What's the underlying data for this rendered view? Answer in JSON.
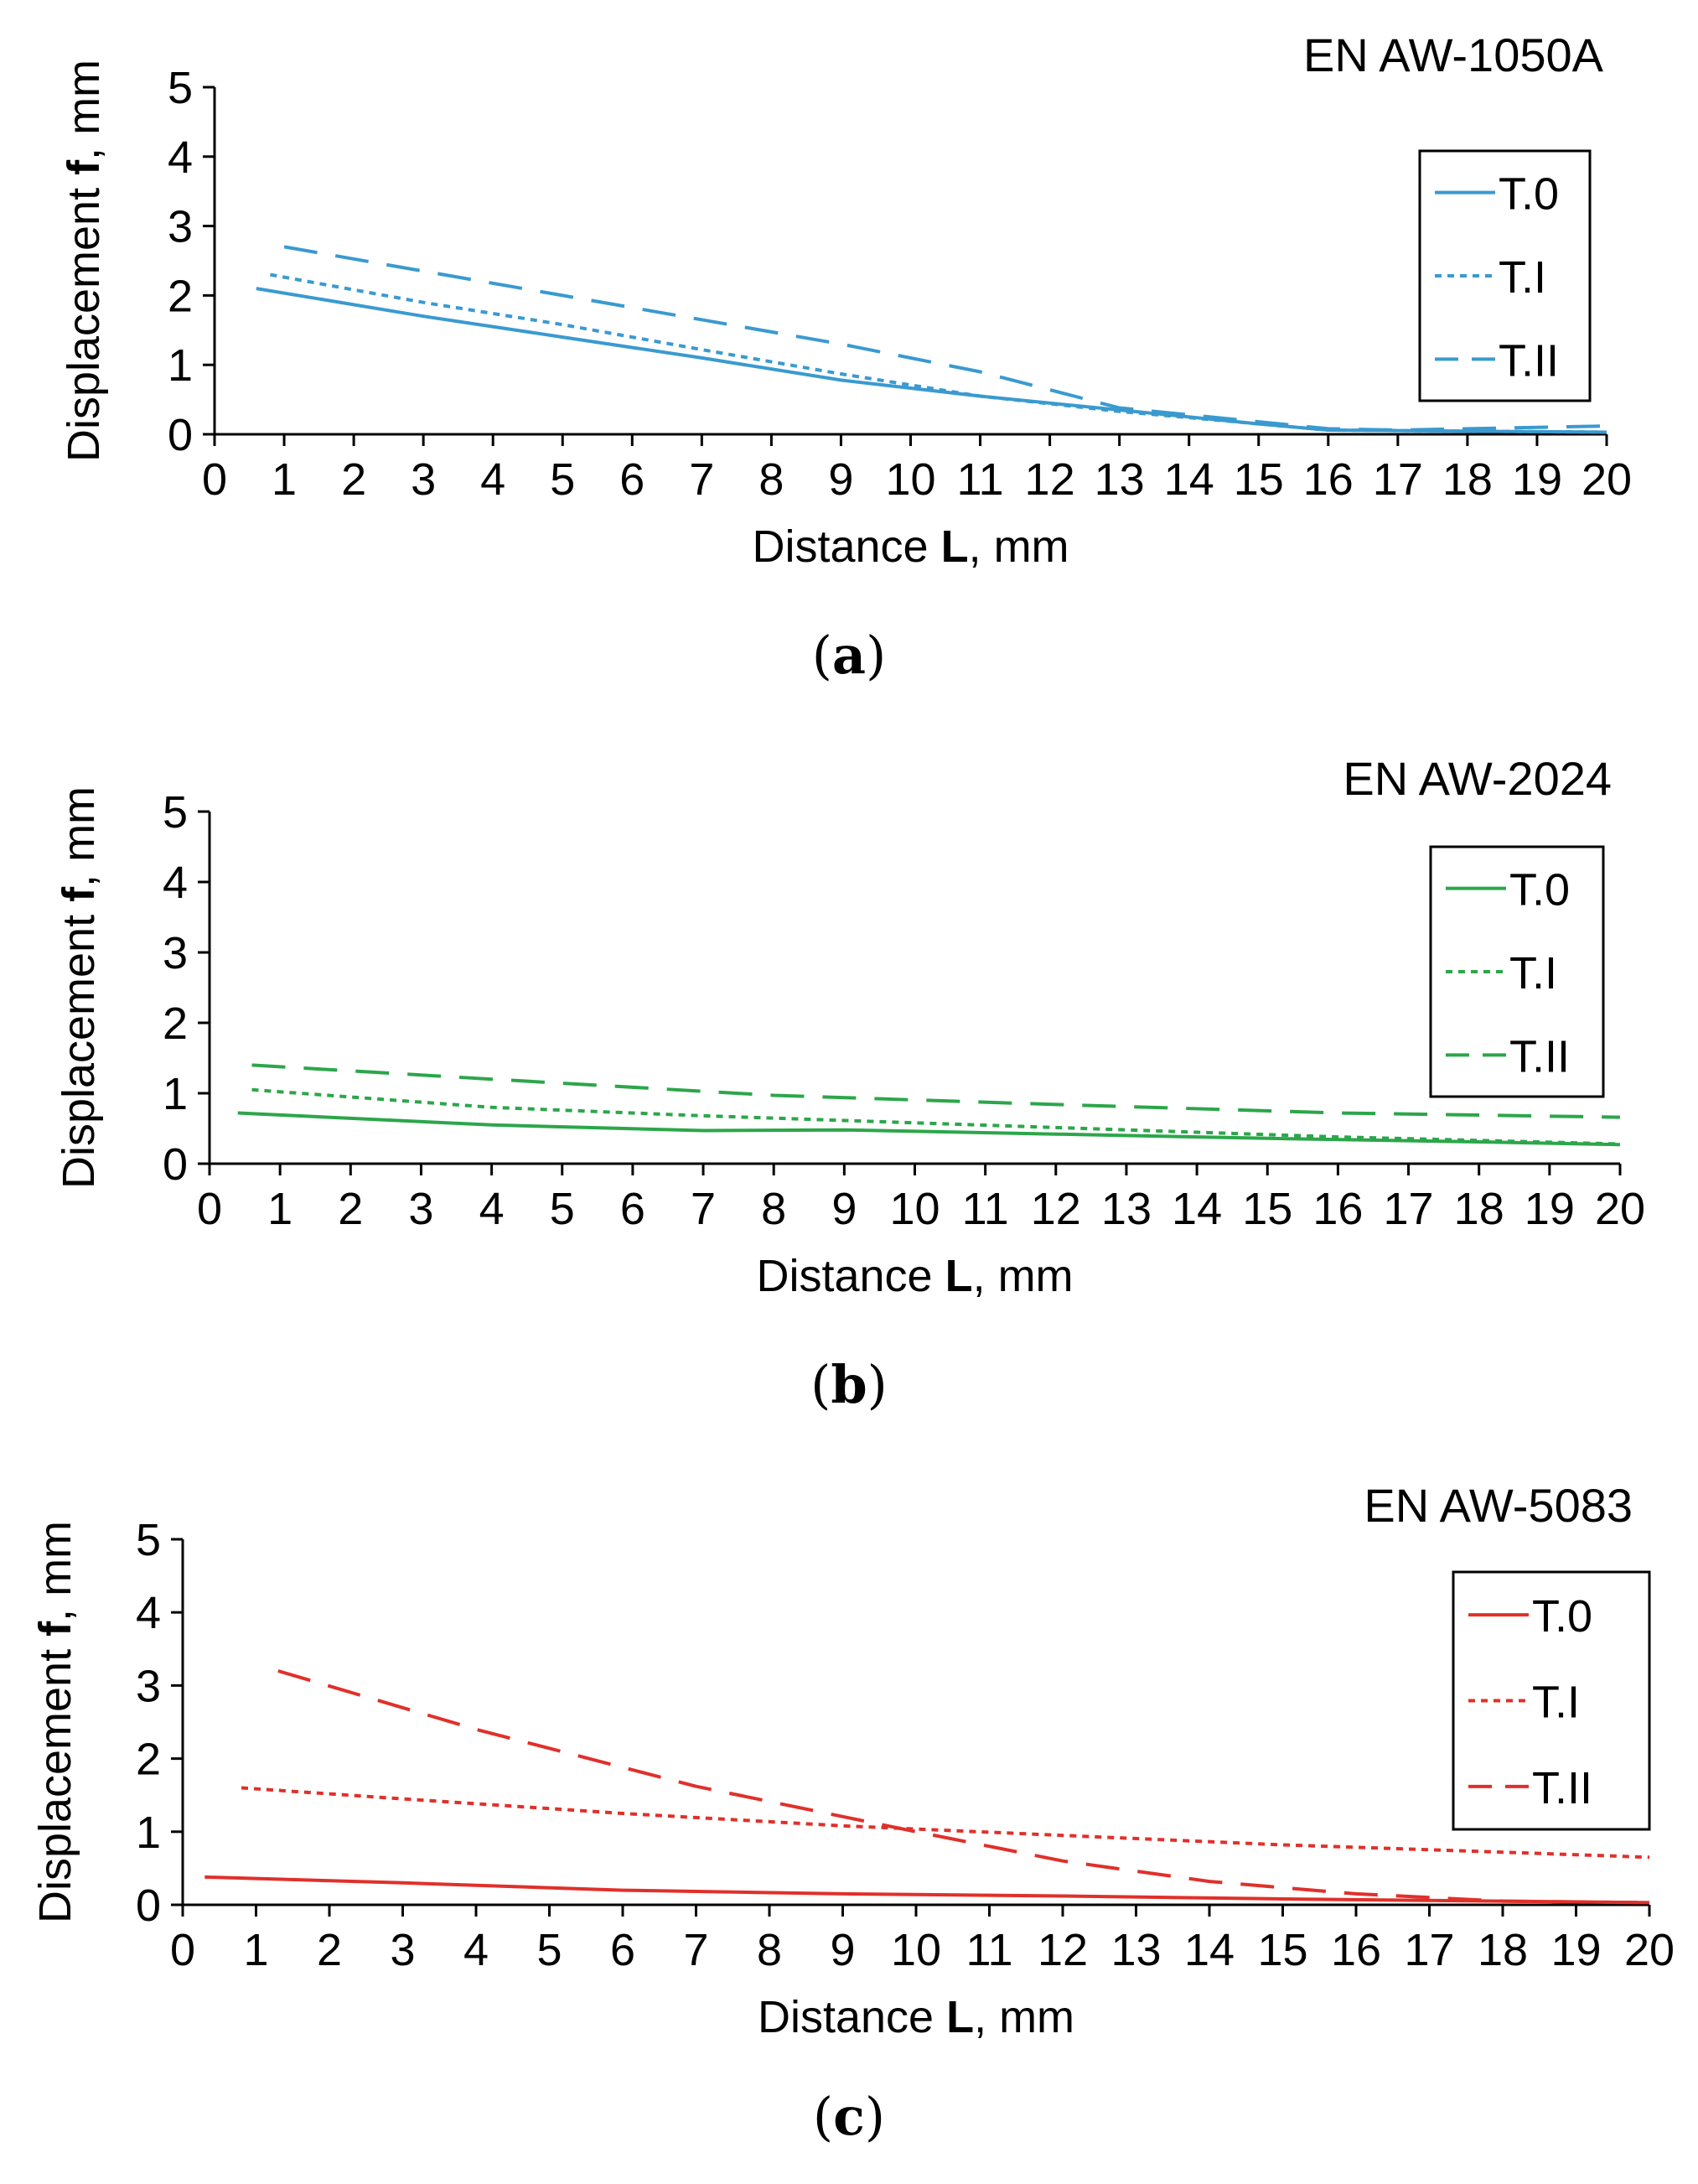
{
  "chart_data": [
    {
      "type": "line",
      "panel_label": "a",
      "title": "EN AW-1050A",
      "xlabel_prefix": "Distance ",
      "xlabel_bold": "L",
      "xlabel_suffix": ", mm",
      "ylabel_prefix": "Displacement ",
      "ylabel_bold": "f",
      "ylabel_suffix": ", mm",
      "xlim": [
        0,
        20
      ],
      "ylim": [
        0,
        5
      ],
      "xticks": [
        "0",
        "1",
        "2",
        "3",
        "4",
        "5",
        "6",
        "7",
        "8",
        "9",
        "10",
        "11",
        "12",
        "13",
        "14",
        "15",
        "16",
        "17",
        "18",
        "19",
        "20"
      ],
      "yticks": [
        "0",
        "1",
        "2",
        "3",
        "4",
        "5"
      ],
      "grid": false,
      "legend_position": "top-right",
      "color": "#3a9ad0",
      "series": [
        {
          "name": "T.0",
          "style": "solid",
          "x": [
            0.6,
            3,
            5,
            7,
            9,
            11,
            13,
            15,
            16,
            20
          ],
          "y": [
            2.1,
            1.7,
            1.4,
            1.1,
            0.78,
            0.55,
            0.35,
            0.15,
            0.06,
            0.03
          ]
        },
        {
          "name": "T.I",
          "style": "dotted",
          "x": [
            0.8,
            3,
            5,
            7,
            9,
            11,
            13,
            15,
            16,
            20
          ],
          "y": [
            2.3,
            1.9,
            1.58,
            1.22,
            0.87,
            0.55,
            0.33,
            0.15,
            0.06,
            0.03
          ]
        },
        {
          "name": "T.II",
          "style": "dashed",
          "x": [
            1,
            5,
            9,
            11,
            13,
            15,
            16,
            17,
            20
          ],
          "y": [
            2.7,
            2.0,
            1.3,
            0.9,
            0.38,
            0.18,
            0.08,
            0.06,
            0.12
          ]
        }
      ]
    },
    {
      "type": "line",
      "panel_label": "b",
      "title": "EN AW-2024",
      "xlabel_prefix": "Distance ",
      "xlabel_bold": "L",
      "xlabel_suffix": ", mm",
      "ylabel_prefix": "Displacement ",
      "ylabel_bold": "f",
      "ylabel_suffix": ", mm",
      "xlim": [
        0,
        20
      ],
      "ylim": [
        0,
        5
      ],
      "xticks": [
        "0",
        "1",
        "2",
        "3",
        "4",
        "5",
        "6",
        "7",
        "8",
        "9",
        "10",
        "11",
        "12",
        "13",
        "14",
        "15",
        "16",
        "17",
        "18",
        "19",
        "20"
      ],
      "yticks": [
        "0",
        "1",
        "2",
        "3",
        "4",
        "5"
      ],
      "grid": false,
      "legend_position": "top-right",
      "color": "#2ca64a",
      "series": [
        {
          "name": "T.0",
          "style": "solid",
          "x": [
            0.4,
            4,
            7,
            9,
            12,
            15,
            18,
            20
          ],
          "y": [
            0.72,
            0.55,
            0.47,
            0.48,
            0.42,
            0.36,
            0.31,
            0.27
          ]
        },
        {
          "name": "T.I",
          "style": "dotted",
          "x": [
            0.6,
            4,
            7,
            10,
            13,
            16,
            20
          ],
          "y": [
            1.05,
            0.8,
            0.68,
            0.58,
            0.48,
            0.38,
            0.28
          ]
        },
        {
          "name": "T.II",
          "style": "dashed",
          "x": [
            0.6,
            4,
            8,
            12,
            16,
            20
          ],
          "y": [
            1.4,
            1.2,
            0.97,
            0.84,
            0.72,
            0.66
          ]
        }
      ]
    },
    {
      "type": "line",
      "panel_label": "c",
      "title": "EN AW-5083",
      "xlabel_prefix": "Distance ",
      "xlabel_bold": "L",
      "xlabel_suffix": ", mm",
      "ylabel_prefix": "Displacement ",
      "ylabel_bold": "f",
      "ylabel_suffix": ", mm",
      "xlim": [
        0,
        20
      ],
      "ylim": [
        0,
        5
      ],
      "xticks": [
        "0",
        "1",
        "2",
        "3",
        "4",
        "5",
        "6",
        "7",
        "8",
        "9",
        "10",
        "11",
        "12",
        "13",
        "14",
        "15",
        "16",
        "17",
        "18",
        "19",
        "20"
      ],
      "yticks": [
        "0",
        "1",
        "2",
        "3",
        "4",
        "5"
      ],
      "grid": false,
      "legend_position": "top-right",
      "color": "#e0302a",
      "series": [
        {
          "name": "T.0",
          "style": "solid",
          "x": [
            0.3,
            3,
            6,
            9,
            12,
            15,
            18,
            20
          ],
          "y": [
            0.38,
            0.3,
            0.2,
            0.15,
            0.12,
            0.08,
            0.05,
            0.03
          ]
        },
        {
          "name": "T.I",
          "style": "dotted",
          "x": [
            0.8,
            3,
            6,
            9,
            12,
            15,
            18,
            20
          ],
          "y": [
            1.6,
            1.45,
            1.25,
            1.08,
            0.95,
            0.82,
            0.72,
            0.65
          ]
        },
        {
          "name": "T.II",
          "style": "dashed",
          "x": [
            1.3,
            4,
            7,
            10,
            12,
            14,
            16,
            18,
            20
          ],
          "y": [
            3.2,
            2.4,
            1.62,
            1.0,
            0.6,
            0.32,
            0.15,
            0.05,
            0.03
          ]
        }
      ]
    }
  ]
}
